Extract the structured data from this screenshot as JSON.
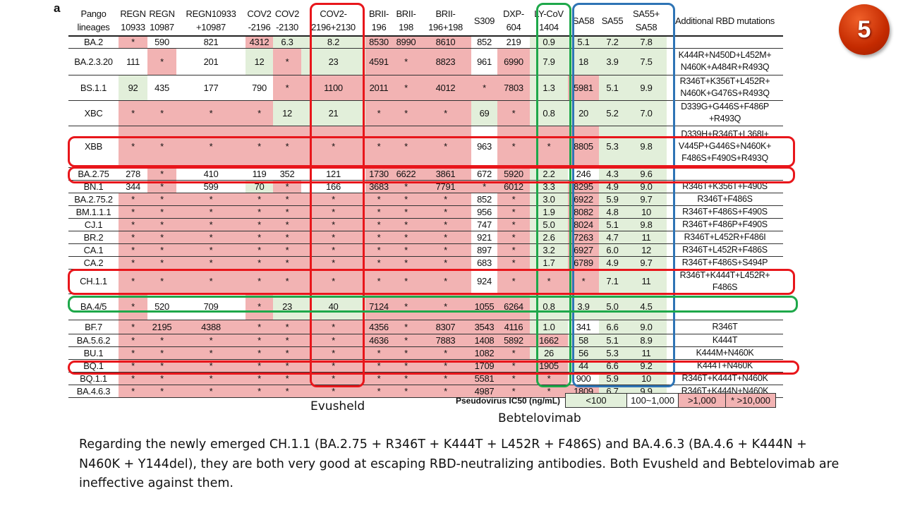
{
  "panel_label": "a",
  "slide_number": "5",
  "columns": [
    "Pango lineages",
    "REGN 10933",
    "REGN 10987",
    "REGN10933 +10987",
    "COV2 -2196",
    "COV2 -2130",
    "COV2- 2196+2130",
    "BRII- 196",
    "BRII- 198",
    "BRII- 196+198",
    "S309",
    "DXP- 604",
    "LY-CoV 1404",
    "SA58",
    "SA55",
    "SA55+ SA58",
    "Additional RBD mutations"
  ],
  "rows": [
    {
      "lineage": "BA.2",
      "values": [
        "*",
        "590",
        "821",
        "4312",
        "6.3",
        "8.2",
        "8530",
        "8990",
        "8610",
        "852",
        "219",
        "0.9",
        "5.1",
        "7.2",
        "7.8"
      ],
      "mutations": ""
    },
    {
      "lineage": "BA.2.3.20",
      "values": [
        "111",
        "*",
        "201",
        "12",
        "*",
        "23",
        "4591",
        "*",
        "8823",
        "961",
        "6990",
        "7.9",
        "18",
        "3.9",
        "7.5"
      ],
      "mutations": "K444R+N450D+L452M+ N460K+A484R+R493Q"
    },
    {
      "lineage": "BS.1.1",
      "values": [
        "92",
        "435",
        "177",
        "790",
        "*",
        "1100",
        "2011",
        "*",
        "4012",
        "*",
        "7803",
        "1.3",
        "5981",
        "5.1",
        "9.9"
      ],
      "mutations": "R346T+K356T+L452R+ N460K+G476S+R493Q"
    },
    {
      "lineage": "XBC",
      "values": [
        "*",
        "*",
        "*",
        "*",
        "12",
        "21",
        "*",
        "*",
        "*",
        "69",
        "*",
        "0.8",
        "20",
        "5.2",
        "7.0"
      ],
      "mutations": "D339G+G446S+F486P +R493Q"
    },
    {
      "lineage": "XBB",
      "values": [
        "*",
        "*",
        "*",
        "*",
        "*",
        "*",
        "*",
        "*",
        "*",
        "963",
        "*",
        "*",
        "8805",
        "5.3",
        "9.8"
      ],
      "mutations": "D339H+R346T+L368I+ V445P+G446S+N460K+ F486S+F490S+R493Q"
    },
    {
      "lineage": "BA.2.75",
      "values": [
        "278",
        "*",
        "410",
        "119",
        "352",
        "121",
        "1730",
        "6622",
        "3861",
        "672",
        "5920",
        "2.2",
        "246",
        "4.3",
        "9.6"
      ],
      "mutations": ""
    },
    {
      "lineage": "BN.1",
      "values": [
        "344",
        "*",
        "599",
        "70",
        "*",
        "166",
        "3683",
        "*",
        "7791",
        "*",
        "6012",
        "3.3",
        "8295",
        "4.9",
        "9.0"
      ],
      "mutations": "R346T+K356T+F490S"
    },
    {
      "lineage": "BA.2.75.2",
      "values": [
        "*",
        "*",
        "*",
        "*",
        "*",
        "*",
        "*",
        "*",
        "*",
        "852",
        "*",
        "3.0",
        "6922",
        "5.9",
        "9.7"
      ],
      "mutations": "R346T+F486S"
    },
    {
      "lineage": "BM.1.1.1",
      "values": [
        "*",
        "*",
        "*",
        "*",
        "*",
        "*",
        "*",
        "*",
        "*",
        "956",
        "*",
        "1.9",
        "8082",
        "4.8",
        "10"
      ],
      "mutations": "R346T+F486S+F490S"
    },
    {
      "lineage": "CJ.1",
      "values": [
        "*",
        "*",
        "*",
        "*",
        "*",
        "*",
        "*",
        "*",
        "*",
        "747",
        "*",
        "5.0",
        "8024",
        "5.1",
        "9.8"
      ],
      "mutations": "R346T+F486P+F490S"
    },
    {
      "lineage": "BR.2",
      "values": [
        "*",
        "*",
        "*",
        "*",
        "*",
        "*",
        "*",
        "*",
        "*",
        "921",
        "*",
        "2.6",
        "7263",
        "4.7",
        "11"
      ],
      "mutations": "R346T+L452R+F486I"
    },
    {
      "lineage": "CA.1",
      "values": [
        "*",
        "*",
        "*",
        "*",
        "*",
        "*",
        "*",
        "*",
        "*",
        "897",
        "*",
        "3.2",
        "6927",
        "6.0",
        "12"
      ],
      "mutations": "R346T+L452R+F486S"
    },
    {
      "lineage": "CA.2",
      "values": [
        "*",
        "*",
        "*",
        "*",
        "*",
        "*",
        "*",
        "*",
        "*",
        "683",
        "*",
        "1.7",
        "6789",
        "4.9",
        "9.7"
      ],
      "mutations": "R346T+F486S+S494P"
    },
    {
      "lineage": "CH.1.1",
      "values": [
        "*",
        "*",
        "*",
        "*",
        "*",
        "*",
        "*",
        "*",
        "*",
        "924",
        "*",
        "*",
        "*",
        "7.1",
        "11"
      ],
      "mutations": "R346T+K444T+L452R+ F486S"
    },
    {
      "lineage": "BA.4/5",
      "values": [
        "*",
        "520",
        "709",
        "*",
        "23",
        "40",
        "7124",
        "*",
        "*",
        "1055",
        "6264",
        "0.8",
        "3.9",
        "5.0",
        "4.5"
      ],
      "mutations": ""
    },
    {
      "lineage": "BF.7",
      "values": [
        "*",
        "2195",
        "4388",
        "*",
        "*",
        "*",
        "4356",
        "*",
        "8307",
        "3543",
        "4116",
        "1.0",
        "341",
        "6.6",
        "9.0"
      ],
      "mutations": "R346T"
    },
    {
      "lineage": "BA.5.6.2",
      "values": [
        "*",
        "*",
        "*",
        "*",
        "*",
        "*",
        "4636",
        "*",
        "7883",
        "1408",
        "5892",
        "1662",
        "58",
        "5.1",
        "8.9"
      ],
      "mutations": "K444T"
    },
    {
      "lineage": "BU.1",
      "values": [
        "*",
        "*",
        "*",
        "*",
        "*",
        "*",
        "*",
        "*",
        "*",
        "1082",
        "*",
        "26",
        "56",
        "5.3",
        "11"
      ],
      "mutations": "K444M+N460K"
    },
    {
      "lineage": "BQ.1",
      "values": [
        "*",
        "*",
        "*",
        "*",
        "*",
        "*",
        "*",
        "*",
        "*",
        "1709",
        "*",
        "1905",
        "44",
        "6.6",
        "9.2"
      ],
      "mutations": "K444T+N460K"
    },
    {
      "lineage": "BQ.1.1",
      "values": [
        "*",
        "*",
        "*",
        "*",
        "*",
        "*",
        "*",
        "*",
        "*",
        "5581",
        "*",
        "*",
        "900",
        "5.9",
        "10"
      ],
      "mutations": "R346T+K444T+N460K"
    },
    {
      "lineage": "BA.4.6.3",
      "values": [
        "*",
        "*",
        "*",
        "*",
        "*",
        "*",
        "*",
        "*",
        "*",
        "4987",
        "*",
        "*",
        "1809",
        "6.7",
        "9.9"
      ],
      "mutations": "R346T+K444N+N460K"
    }
  ],
  "legend": {
    "title": "Pseudovirus IC50 (ng/mL)",
    "items": [
      "<100",
      "100~1,000",
      ">1,000",
      "* >10,000"
    ]
  },
  "colors": {
    "low": "#e2efda",
    "mid": "#ffffff",
    "high": "#f2b3b3",
    "red_box": "#e8161b",
    "green_box": "#1ea84a",
    "blue_box": "#2e74b5"
  },
  "labels": {
    "evusheld": "Evusheld",
    "bebtelovimab": "Bebtelovimab"
  },
  "caption": "Regarding the newly emerged CH.1.1 (BA.2.75 + R346T + K444T + L452R + F486S) and BA.4.6.3 (BA.4.6 + K444N + N460K + Y144del), they are both very good at escaping RBD-neutralizing antibodies. Both Evusheld and Bebtelovimab are ineffective against them."
}
